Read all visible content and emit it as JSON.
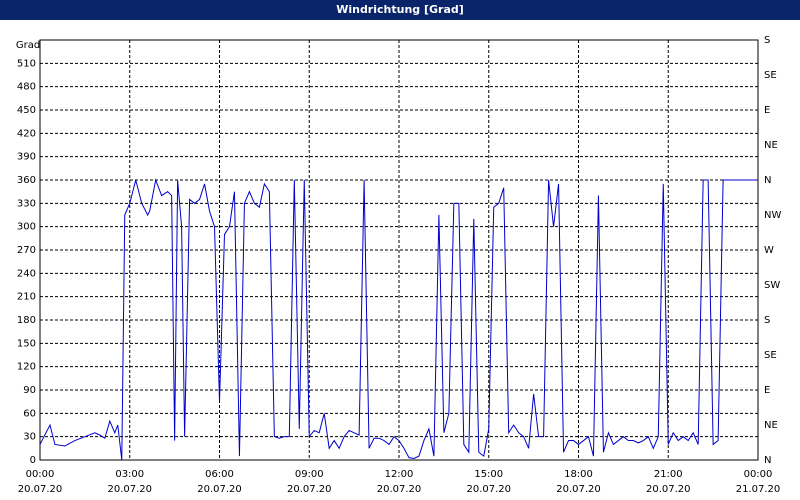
{
  "chart_data": {
    "type": "line",
    "title": "Windrichtung [Grad]",
    "ylabel": "Grad",
    "color": "#0000cc",
    "grid": true,
    "xlim": [
      0,
      1440
    ],
    "xticks": [
      {
        "value": 0,
        "label": "00:00"
      },
      {
        "value": 180,
        "label": "03:00"
      },
      {
        "value": 360,
        "label": "06:00"
      },
      {
        "value": 540,
        "label": "09:00"
      },
      {
        "value": 720,
        "label": "12:00"
      },
      {
        "value": 900,
        "label": "15:00"
      },
      {
        "value": 1080,
        "label": "18:00"
      },
      {
        "value": 1260,
        "label": "21:00"
      },
      {
        "value": 1440,
        "label": "00:00"
      }
    ],
    "xtick_dates": [
      "20.07.20",
      "20.07.20",
      "20.07.20",
      "20.07.20",
      "20.07.20",
      "20.07.20",
      "20.07.20",
      "20.07.20",
      "21.07.20"
    ],
    "ylim": [
      0,
      540
    ],
    "yticks": [
      0,
      30,
      60,
      90,
      120,
      150,
      180,
      210,
      240,
      270,
      300,
      330,
      360,
      390,
      420,
      450,
      480,
      510
    ],
    "y2lim": [
      0,
      540
    ],
    "y2ticks": [
      {
        "value": 0,
        "label": "N"
      },
      {
        "value": 45,
        "label": "NE"
      },
      {
        "value": 90,
        "label": "E"
      },
      {
        "value": 135,
        "label": "SE"
      },
      {
        "value": 180,
        "label": "S"
      },
      {
        "value": 225,
        "label": "SW"
      },
      {
        "value": 270,
        "label": "W"
      },
      {
        "value": 315,
        "label": "NW"
      },
      {
        "value": 360,
        "label": "N"
      },
      {
        "value": 405,
        "label": "NE"
      },
      {
        "value": 450,
        "label": "E"
      },
      {
        "value": 495,
        "label": "SE"
      },
      {
        "value": 540,
        "label": "S"
      }
    ],
    "x": [
      0,
      20,
      30,
      50,
      70,
      90,
      110,
      120,
      130,
      140,
      150,
      156,
      164,
      170,
      180,
      192,
      204,
      216,
      220,
      232,
      244,
      256,
      264,
      270,
      276,
      284,
      290,
      300,
      310,
      320,
      330,
      340,
      350,
      360,
      370,
      380,
      390,
      400,
      410,
      420,
      430,
      440,
      450,
      460,
      470,
      480,
      490,
      500,
      510,
      520,
      530,
      540,
      550,
      560,
      570,
      580,
      590,
      600,
      610,
      620,
      630,
      640,
      650,
      660,
      670,
      680,
      690,
      700,
      710,
      720,
      730,
      740,
      750,
      760,
      770,
      780,
      790,
      800,
      810,
      820,
      830,
      840,
      850,
      860,
      870,
      880,
      890,
      900,
      910,
      920,
      930,
      940,
      950,
      960,
      970,
      980,
      990,
      1000,
      1010,
      1020,
      1030,
      1040,
      1050,
      1060,
      1070,
      1080,
      1090,
      1100,
      1110,
      1120,
      1130,
      1140,
      1150,
      1160,
      1170,
      1180,
      1190,
      1200,
      1210,
      1220,
      1230,
      1240,
      1250,
      1260,
      1270,
      1280,
      1290,
      1300,
      1310,
      1320,
      1330,
      1340,
      1350,
      1360,
      1370,
      1380,
      1440
    ],
    "values": [
      20,
      45,
      20,
      18,
      25,
      30,
      35,
      32,
      28,
      50,
      35,
      45,
      0,
      315,
      330,
      360,
      330,
      315,
      320,
      360,
      340,
      345,
      340,
      25,
      360,
      300,
      30,
      335,
      330,
      335,
      355,
      320,
      300,
      75,
      290,
      300,
      345,
      5,
      330,
      345,
      330,
      325,
      355,
      345,
      30,
      28,
      30,
      30,
      360,
      40,
      360,
      30,
      38,
      35,
      60,
      15,
      25,
      15,
      30,
      38,
      35,
      32,
      360,
      15,
      28,
      28,
      25,
      20,
      30,
      25,
      15,
      3,
      2,
      5,
      25,
      40,
      5,
      315,
      35,
      60,
      330,
      330,
      20,
      10,
      310,
      10,
      5,
      40,
      325,
      330,
      350,
      35,
      45,
      35,
      30,
      15,
      85,
      30,
      30,
      360,
      300,
      355,
      10,
      25,
      25,
      20,
      25,
      30,
      5,
      340,
      10,
      35,
      20,
      25,
      30,
      25,
      25,
      22,
      25,
      30,
      15,
      30,
      355,
      20,
      35,
      25,
      30,
      25,
      35,
      20,
      360,
      360,
      20,
      25,
      360,
      360,
      360
    ]
  }
}
